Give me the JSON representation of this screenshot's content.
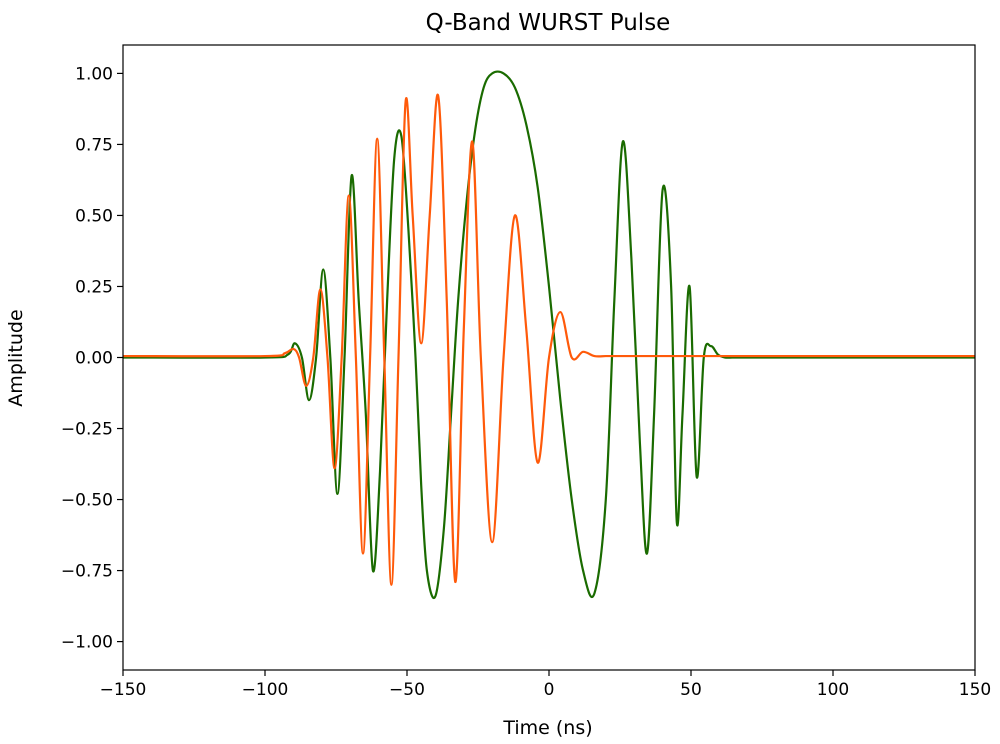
{
  "chart_data": {
    "type": "line",
    "title": "Q-Band WURST Pulse",
    "xlabel": "Time (ns)",
    "ylabel": "Amplitude",
    "xlim": [
      -150,
      150
    ],
    "ylim": [
      -1.1,
      1.1
    ],
    "xticks": [
      -150,
      -100,
      -50,
      0,
      50,
      100,
      150
    ],
    "xtick_labels": [
      "−150",
      "−100",
      "−50",
      "0",
      "50",
      "100",
      "150"
    ],
    "yticks": [
      -1.0,
      -0.75,
      -0.5,
      -0.25,
      0.0,
      0.25,
      0.5,
      0.75,
      1.0
    ],
    "ytick_labels": [
      "−1.00",
      "−0.75",
      "−0.50",
      "−0.25",
      "0.00",
      "0.25",
      "0.50",
      "0.75",
      "1.00"
    ],
    "grid": false,
    "legend": null,
    "series": [
      {
        "color": "#1a6b00",
        "x": [
          -150,
          -100,
          -92,
          -89.5,
          -87,
          -84.5,
          -82,
          -79.5,
          -77,
          -74.5,
          -72,
          -69.5,
          -67,
          -64.5,
          -62,
          -59.5,
          -57,
          -54.5,
          -52,
          -49.5,
          -47,
          -45,
          -43,
          -40,
          -37,
          -34.5,
          -32,
          -29,
          -26,
          -23,
          -20,
          -16,
          -12,
          -8,
          -4,
          0,
          4,
          8,
          12,
          16,
          20,
          23,
          26,
          29,
          32,
          34.5,
          37,
          40,
          43,
          45,
          47,
          49.5,
          52,
          54.5,
          57,
          59.5,
          62,
          64.5,
          67,
          69.5,
          72,
          74.5,
          77,
          79.5,
          82,
          84.5,
          87,
          89.5,
          92,
          100,
          150
        ],
        "y": [
          0,
          0,
          0.01,
          0.05,
          0,
          -0.15,
          0,
          0.31,
          0,
          -0.48,
          0,
          0.64,
          0.2,
          -0.2,
          -0.75,
          -0.4,
          0.2,
          0.7,
          0.78,
          0.45,
          0,
          -0.45,
          -0.75,
          -0.84,
          -0.6,
          -0.2,
          0.2,
          0.55,
          0.8,
          0.95,
          1.0,
          1.0,
          0.95,
          0.82,
          0.6,
          0.25,
          -0.15,
          -0.5,
          -0.75,
          -0.83,
          -0.5,
          0.2,
          0.76,
          0.35,
          -0.3,
          -0.69,
          -0.2,
          0.59,
          0.25,
          -0.58,
          -0.2,
          0.25,
          -0.42,
          0,
          0.04,
          0.01,
          0,
          0,
          0,
          0,
          0,
          0,
          0,
          0,
          0,
          0,
          0,
          0,
          0,
          0,
          0
        ]
      },
      {
        "color": "#ff5a0a",
        "x": [
          -150,
          -100,
          -93,
          -90,
          -88,
          -85.5,
          -83,
          -80.5,
          -78,
          -75.5,
          -73,
          -70.5,
          -68,
          -65.5,
          -63,
          -60.5,
          -58,
          -55.5,
          -53,
          -50.5,
          -48,
          -45,
          -42,
          -39,
          -36,
          -33,
          -30,
          -27,
          -24,
          -20,
          -16,
          -12,
          -8,
          -4,
          0,
          4,
          8,
          12,
          16,
          20,
          23,
          26,
          29,
          32,
          34.5,
          37,
          40,
          43,
          46,
          49,
          52,
          55,
          58,
          61,
          64,
          67,
          70,
          73,
          76,
          79,
          82,
          85,
          88,
          91,
          94,
          100,
          150
        ],
        "y": [
          0.005,
          0.005,
          0.015,
          0.03,
          0.0,
          -0.1,
          0.0,
          0.24,
          0.0,
          -0.39,
          0.0,
          0.57,
          0.0,
          -0.69,
          0.0,
          0.77,
          0.0,
          -0.8,
          0.0,
          0.9,
          0.5,
          0.05,
          0.5,
          0.92,
          0.2,
          -0.79,
          0.1,
          0.76,
          0.0,
          -0.65,
          0.0,
          0.5,
          0.1,
          -0.37,
          0.0,
          0.16,
          0.0,
          0.02,
          0.005,
          0.005,
          0.005,
          0.005,
          0.005,
          0.005,
          0.005,
          0.005,
          0.005,
          0.005,
          0.005,
          0.005,
          0.005,
          0.005,
          0.005,
          0.005,
          0.005,
          0.005,
          0.005,
          0.005,
          0.005,
          0.005,
          0.005,
          0.005,
          0.005,
          0.005,
          0.005,
          0.005,
          0.005
        ]
      }
    ]
  }
}
